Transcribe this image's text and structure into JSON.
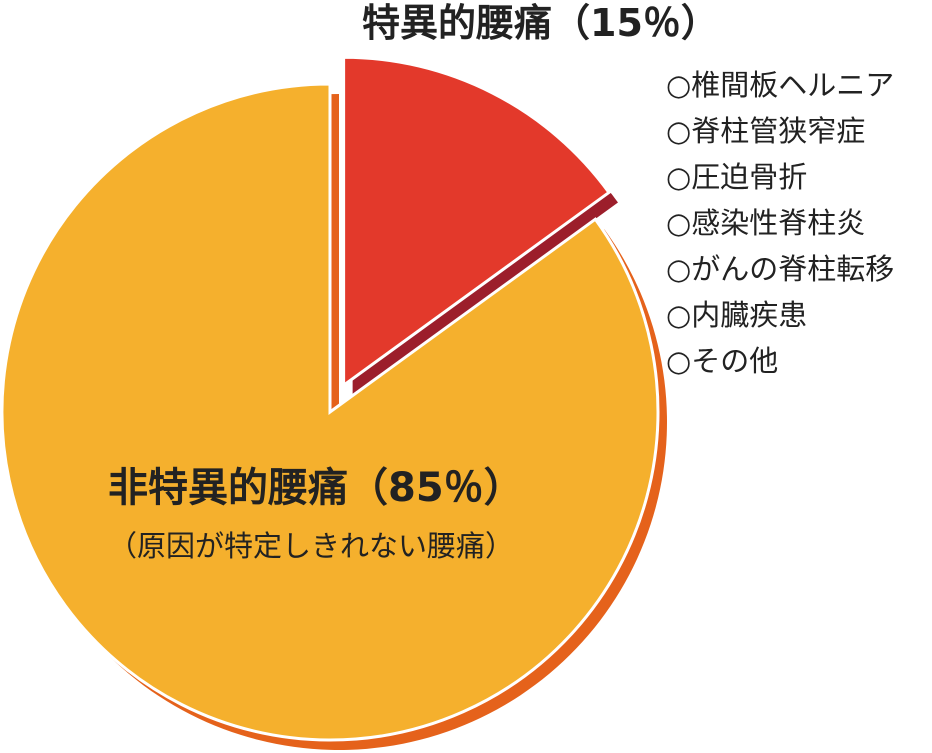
{
  "chart_data": {
    "type": "pie",
    "categories": [
      "特異的腰痛",
      "非特異的腰痛"
    ],
    "values": [
      15,
      85
    ],
    "value_labels": [
      "（15％）",
      "（85％）"
    ],
    "colors": [
      "#e3392b",
      "#f5b02d"
    ],
    "subtitle": "（原因が特定しきれない腰痛）",
    "annotations": [
      "○椎間板ヘルニア",
      "○脊柱管狭窄症",
      "○圧迫骨折",
      "○感染性脊柱炎",
      "○がんの脊柱転移",
      "○内臓疾患",
      "○その他"
    ]
  }
}
